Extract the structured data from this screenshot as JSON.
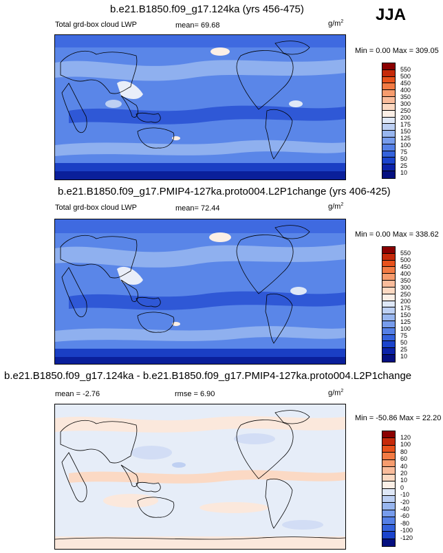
{
  "season": "JJA",
  "panels": [
    {
      "title": "b.e21.B1850.f09_g17.124ka (yrs 456-475)",
      "variable": "Total grd-box cloud LWP",
      "mean_label": "mean=",
      "mean": "69.68",
      "units_base": "g/m",
      "units_exp": "2",
      "minmax": "Min =   0.00 Max = 309.05",
      "legend": {
        "labels": [
          "550",
          "500",
          "450",
          "400",
          "350",
          "300",
          "250",
          "200",
          "175",
          "150",
          "125",
          "100",
          "75",
          "50",
          "25",
          "10"
        ],
        "colors": [
          "#8b0000",
          "#c62a0a",
          "#e8521c",
          "#f27b44",
          "#f69c6e",
          "#f9bc9b",
          "#fcd9c2",
          "#fbefe6",
          "#dfe8f7",
          "#bdd0f3",
          "#98b6ef",
          "#779cec",
          "#5580e6",
          "#3462dc",
          "#1b44cc",
          "#0c23a8",
          "#051080"
        ]
      }
    },
    {
      "title": "b.e21.B1850.f09_g17.PMIP4-127ka.proto004.L2P1change (yrs 406-425)",
      "variable": "Total grd-box cloud LWP",
      "mean_label": "mean=",
      "mean": "72.44",
      "units_base": "g/m",
      "units_exp": "2",
      "minmax": "Min =   0.00 Max = 338.62",
      "legend": {
        "labels": [
          "550",
          "500",
          "450",
          "400",
          "350",
          "300",
          "250",
          "200",
          "175",
          "150",
          "125",
          "100",
          "75",
          "50",
          "25",
          "10"
        ],
        "colors": [
          "#8b0000",
          "#c62a0a",
          "#e8521c",
          "#f27b44",
          "#f69c6e",
          "#f9bc9b",
          "#fcd9c2",
          "#fbefe6",
          "#dfe8f7",
          "#bdd0f3",
          "#98b6ef",
          "#779cec",
          "#5580e6",
          "#3462dc",
          "#1b44cc",
          "#0c23a8",
          "#051080"
        ]
      }
    },
    {
      "title": "b.e21.B1850.f09_g17.124ka - b.e21.B1850.f09_g17.PMIP4-127ka.proto004.L2P1change",
      "mean_label": "mean =",
      "mean": "-2.76",
      "rmse_label": "rmse =",
      "rmse": "6.90",
      "units_base": "g/m",
      "units_exp": "2",
      "minmax": "Min = -50.86 Max =  22.20",
      "legend": {
        "labels": [
          "120",
          "100",
          "80",
          "60",
          "40",
          "20",
          "10",
          "0",
          "-10",
          "-20",
          "-40",
          "-60",
          "-80",
          "-100",
          "-120"
        ],
        "colors": [
          "#8b0000",
          "#c62a0a",
          "#e8521c",
          "#f27b44",
          "#f69c6e",
          "#f9bc9b",
          "#fcd9c2",
          "#fbefe6",
          "#dfe8f7",
          "#bdd0f3",
          "#98b6ef",
          "#779cec",
          "#5580e6",
          "#3462dc",
          "#1b44cc",
          "#051080"
        ]
      }
    }
  ]
}
